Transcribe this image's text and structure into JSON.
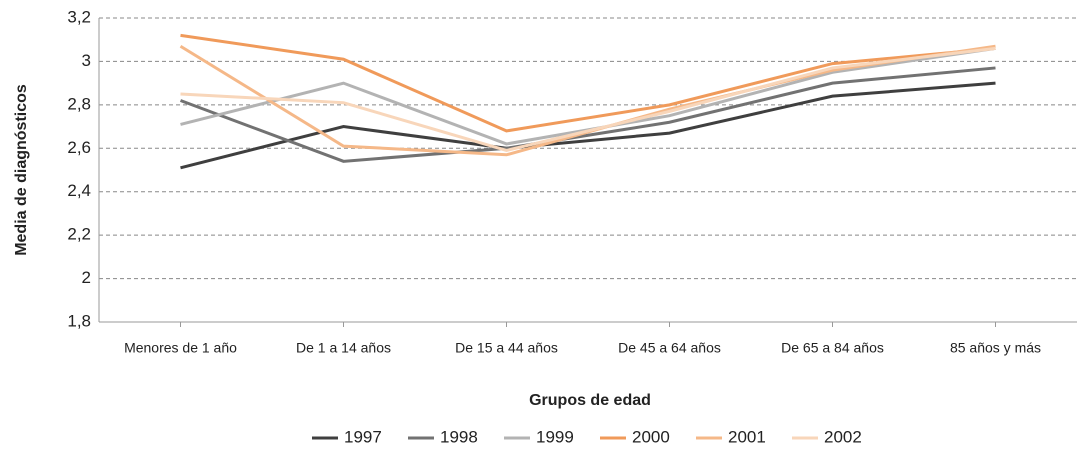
{
  "chart_data": {
    "type": "line",
    "y_label": "Media de diagnósticos",
    "x_label": "Grupos de edad",
    "categories": [
      "Menores de 1 año",
      "De 1 a 14 años",
      "De 15 a 44 años",
      "De 45 a 64 años",
      "De 65 a 84 años",
      "85 años y más"
    ],
    "series": [
      {
        "name": "1997",
        "color": "#3f3f3f",
        "values": [
          2.51,
          2.7,
          2.6,
          2.67,
          2.84,
          2.9
        ]
      },
      {
        "name": "1998",
        "color": "#727272",
        "values": [
          2.82,
          2.54,
          2.6,
          2.72,
          2.9,
          2.97
        ]
      },
      {
        "name": "1999",
        "color": "#b3b3b3",
        "values": [
          2.71,
          2.9,
          2.62,
          2.75,
          2.95,
          3.06
        ]
      },
      {
        "name": "2000",
        "color": "#f09a5a",
        "values": [
          3.12,
          3.01,
          2.68,
          2.8,
          2.99,
          3.06
        ]
      },
      {
        "name": "2001",
        "color": "#f5b888",
        "values": [
          3.07,
          2.61,
          2.57,
          2.78,
          2.96,
          3.07
        ]
      },
      {
        "name": "2002",
        "color": "#f8d6ba",
        "values": [
          2.85,
          2.81,
          2.59,
          2.77,
          2.97,
          3.06
        ]
      }
    ],
    "ylim": [
      1.8,
      3.2
    ],
    "yticks": [
      {
        "value": 1.8,
        "label": "1,8"
      },
      2,
      {
        "value": 2.2,
        "label": "2,2"
      },
      {
        "value": 2.4,
        "label": "2,4"
      },
      {
        "value": 2.6,
        "label": "2,6"
      },
      {
        "value": 2.8,
        "label": "2,8"
      },
      3,
      {
        "value": 3.2,
        "label": "3,2"
      }
    ],
    "grid": true,
    "legend": "bottom"
  }
}
